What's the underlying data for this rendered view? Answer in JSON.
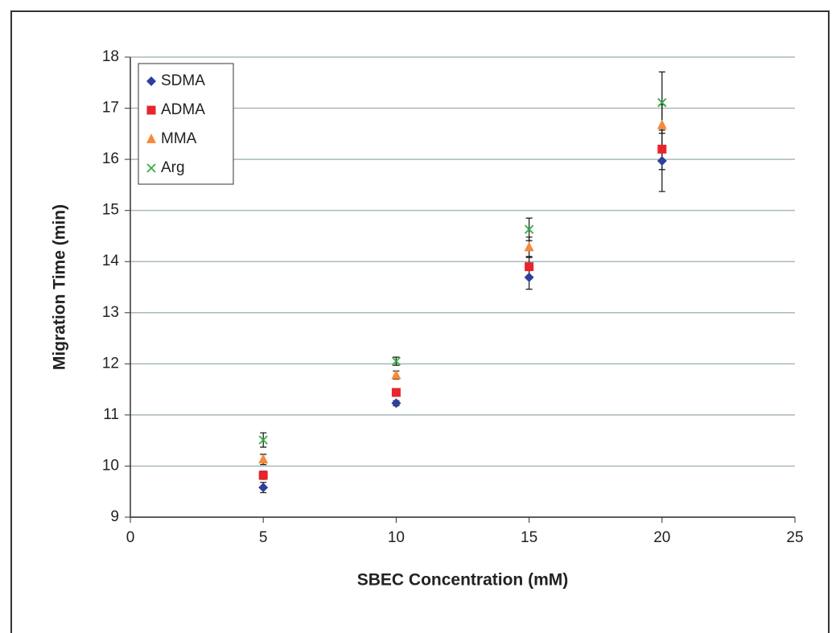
{
  "chart_data": {
    "type": "scatter",
    "xlabel": "SBEC Concentration (mM)",
    "ylabel": "Migration Time (min)",
    "x": [
      5,
      10,
      15,
      20
    ],
    "series": [
      {
        "name": "SDMA",
        "color": "#2e3f9e",
        "marker": "diamond",
        "values": [
          9.58,
          11.23,
          13.69,
          15.97
        ],
        "errors": [
          0.1,
          0.05,
          0.23,
          0.6
        ]
      },
      {
        "name": "ADMA",
        "color": "#e8242c",
        "marker": "square",
        "values": [
          9.82,
          11.44,
          13.9,
          16.2
        ],
        "errors": [
          0.08,
          0.05,
          0.2,
          0.4
        ]
      },
      {
        "name": "MMA",
        "color": "#f58a3a",
        "marker": "triangle",
        "values": [
          10.13,
          11.78,
          14.28,
          16.67
        ],
        "errors": [
          0.1,
          0.08,
          0.2,
          0.4
        ]
      },
      {
        "name": "Arg",
        "color": "#3aab4a",
        "marker": "x",
        "values": [
          10.51,
          12.05,
          14.63,
          17.11
        ],
        "errors": [
          0.14,
          0.08,
          0.22,
          0.6
        ]
      }
    ],
    "xlim": [
      0,
      25
    ],
    "xticks": [
      0,
      5,
      10,
      15,
      20,
      25
    ],
    "ylim": [
      9,
      18
    ],
    "yticks": [
      9,
      10,
      11,
      12,
      13,
      14,
      15,
      16,
      17,
      18
    ],
    "grid": true,
    "legend": "upper-left"
  }
}
